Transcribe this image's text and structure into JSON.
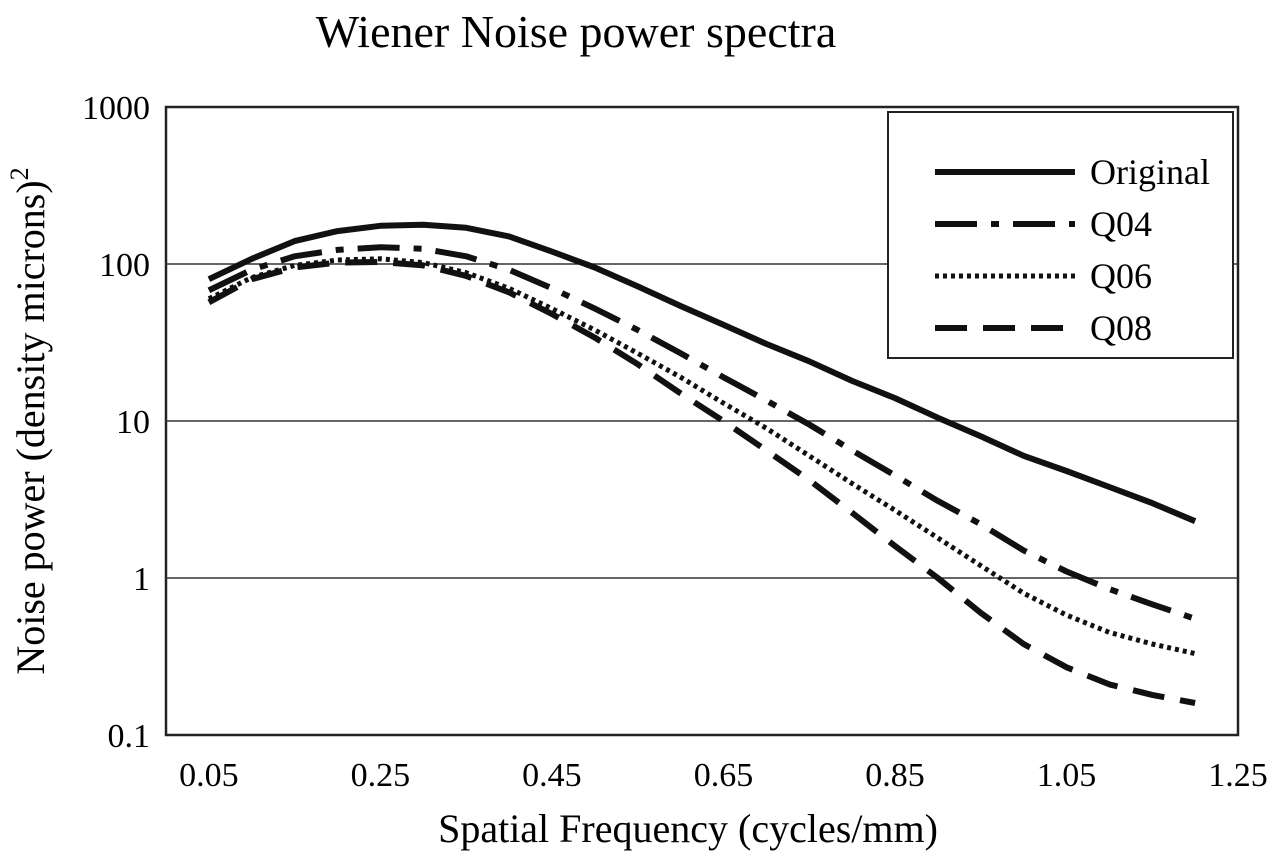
{
  "chart_data": {
    "type": "line",
    "title": "Wiener Noise power spectra",
    "xlabel": "Spatial Frequency (cycles/mm)",
    "ylabel": "Noise power (density microns)",
    "ylabel_superscript": "2",
    "y_scale": "log",
    "ylim": [
      0.1,
      1000
    ],
    "y_ticks": [
      "0.1",
      "1",
      "10",
      "100",
      "1000"
    ],
    "xlim": [
      0.0,
      1.25
    ],
    "x_ticks": [
      "0.05",
      "0.25",
      "0.45",
      "0.65",
      "0.85",
      "1.05",
      "1.25"
    ],
    "grid": "horizontal",
    "legend_position": "top-right",
    "series": [
      {
        "name": "Original",
        "style": "solid",
        "x": [
          0.05,
          0.1,
          0.15,
          0.2,
          0.25,
          0.3,
          0.35,
          0.4,
          0.45,
          0.5,
          0.55,
          0.6,
          0.65,
          0.7,
          0.75,
          0.8,
          0.85,
          0.9,
          0.95,
          1.0,
          1.05,
          1.1,
          1.15,
          1.2
        ],
        "values": [
          80,
          108,
          140,
          162,
          175,
          178,
          170,
          150,
          120,
          95,
          72,
          54,
          41,
          31,
          24,
          18,
          14,
          10.5,
          8,
          6,
          4.8,
          3.8,
          3.0,
          2.3
        ]
      },
      {
        "name": "Q04",
        "style": "dash-dot",
        "x": [
          0.05,
          0.1,
          0.15,
          0.2,
          0.25,
          0.3,
          0.35,
          0.4,
          0.45,
          0.5,
          0.55,
          0.6,
          0.65,
          0.7,
          0.75,
          0.8,
          0.85,
          0.9,
          0.95,
          1.0,
          1.05,
          1.1,
          1.15,
          1.2
        ],
        "values": [
          68,
          92,
          112,
          123,
          128,
          125,
          112,
          92,
          70,
          52,
          38,
          27,
          19,
          13.5,
          9.5,
          6.5,
          4.5,
          3.1,
          2.2,
          1.5,
          1.1,
          0.85,
          0.68,
          0.55
        ]
      },
      {
        "name": "Q06",
        "style": "dotted",
        "x": [
          0.05,
          0.1,
          0.15,
          0.2,
          0.25,
          0.3,
          0.35,
          0.4,
          0.45,
          0.5,
          0.55,
          0.6,
          0.65,
          0.7,
          0.75,
          0.8,
          0.85,
          0.9,
          0.95,
          1.0,
          1.05,
          1.1,
          1.15,
          1.2
        ],
        "values": [
          60,
          82,
          98,
          106,
          108,
          102,
          88,
          70,
          52,
          38,
          27,
          19,
          13,
          9,
          6,
          4,
          2.7,
          1.8,
          1.2,
          0.8,
          0.58,
          0.45,
          0.38,
          0.33
        ]
      },
      {
        "name": "Q08",
        "style": "dashed",
        "x": [
          0.05,
          0.1,
          0.15,
          0.2,
          0.25,
          0.3,
          0.35,
          0.4,
          0.45,
          0.5,
          0.55,
          0.6,
          0.65,
          0.7,
          0.75,
          0.8,
          0.85,
          0.9,
          0.95,
          1.0,
          1.05,
          1.1,
          1.15,
          1.2
        ],
        "values": [
          57,
          80,
          95,
          102,
          103,
          98,
          84,
          66,
          48,
          34,
          23,
          15,
          10,
          6.5,
          4.2,
          2.6,
          1.6,
          1.0,
          0.6,
          0.38,
          0.27,
          0.21,
          0.18,
          0.16
        ]
      }
    ]
  }
}
